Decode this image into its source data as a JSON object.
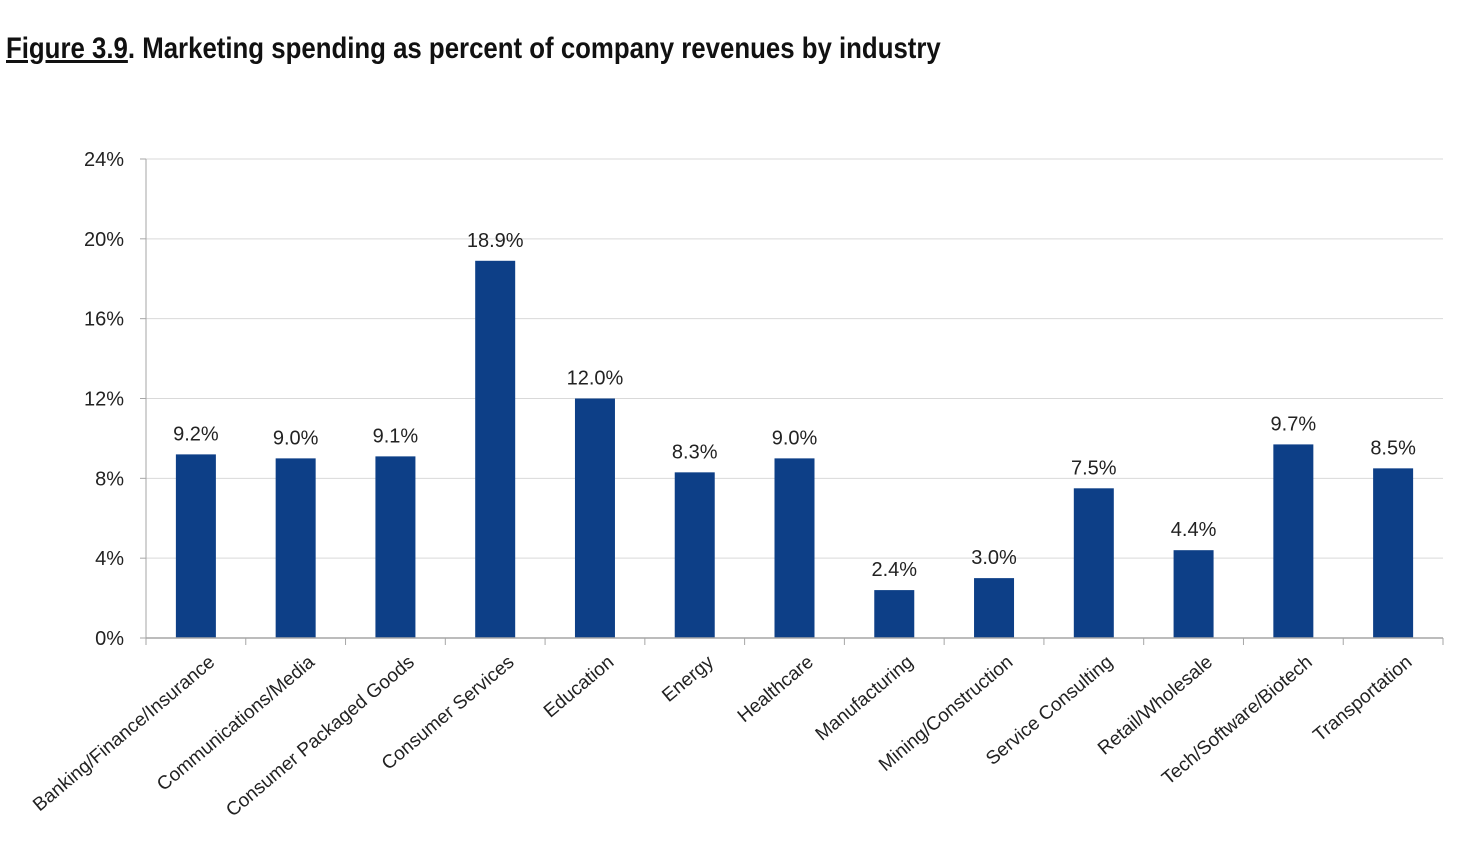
{
  "figure": {
    "label": "Figure 3.9",
    "caption": ". Marketing spending as percent of company revenues by industry"
  },
  "colors": {
    "bar": "#0d3f87",
    "grid": "#d9d9d9",
    "axis": "#a6a6a6"
  },
  "chart_data": {
    "type": "bar",
    "title": "Figure 3.9. Marketing spending as percent of company revenues by industry",
    "xlabel": "",
    "ylabel": "",
    "ylim": [
      0,
      24
    ],
    "yticks": [
      0,
      4,
      8,
      12,
      16,
      20,
      24
    ],
    "ytick_labels": [
      "0%",
      "4%",
      "8%",
      "12%",
      "16%",
      "20%",
      "24%"
    ],
    "grid": true,
    "legend": "none",
    "categories": [
      "Banking/Finance/Insurance",
      "Communications/Media",
      "Consumer Packaged Goods",
      "Consumer Services",
      "Education",
      "Energy",
      "Healthcare",
      "Manufacturing",
      "Mining/Construction",
      "Service Consulting",
      "Retail/Wholesale",
      "Tech/Software/Biotech",
      "Transportation"
    ],
    "values": [
      9.2,
      9.0,
      9.1,
      18.9,
      12.0,
      8.3,
      9.0,
      2.4,
      3.0,
      7.5,
      4.4,
      9.7,
      8.5
    ],
    "value_labels": [
      "9.2%",
      "9.0%",
      "9.1%",
      "18.9%",
      "12.0%",
      "8.3%",
      "9.0%",
      "2.4%",
      "3.0%",
      "7.5%",
      "4.4%",
      "9.7%",
      "8.5%"
    ]
  }
}
